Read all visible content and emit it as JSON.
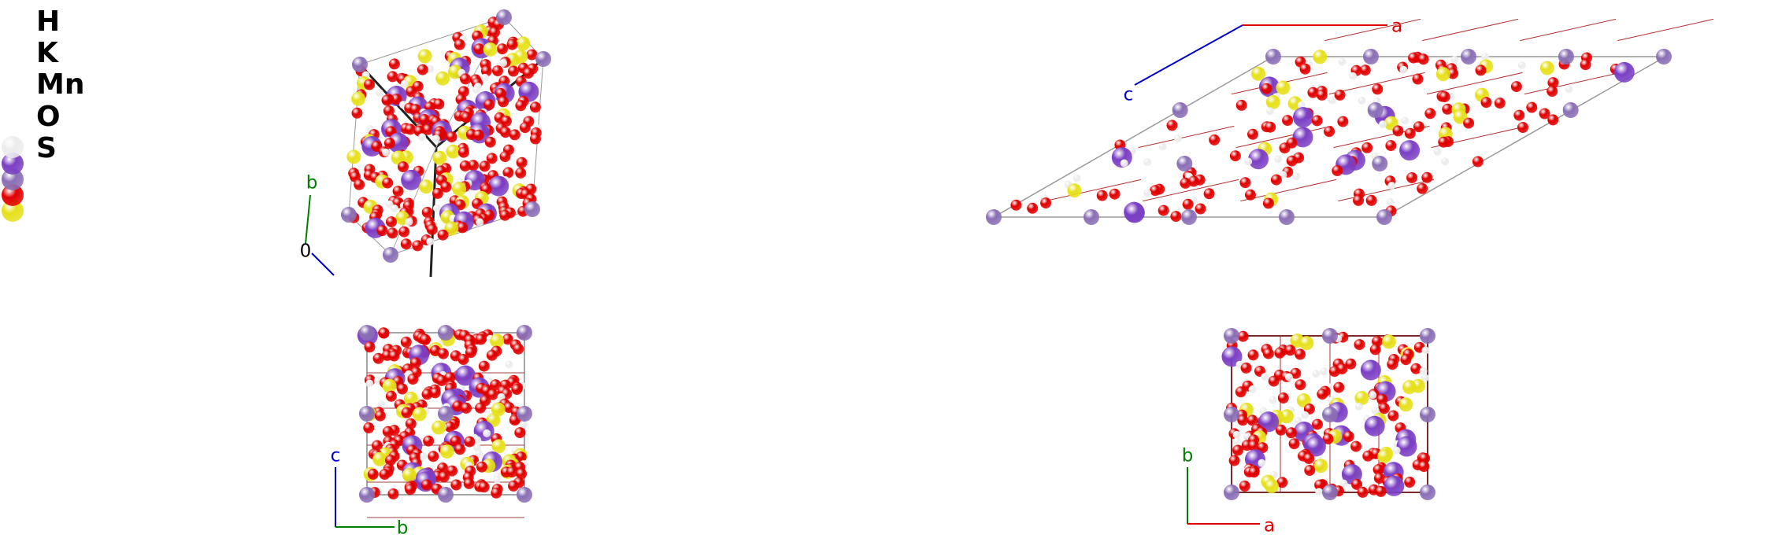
{
  "legend": [
    {
      "label": "H",
      "color": "#ececec"
    },
    {
      "label": "K",
      "color": "#7b3fc4"
    },
    {
      "label": "Mn",
      "color": "#8a6fb5"
    },
    {
      "label": "O",
      "color": "#e00000"
    },
    {
      "label": "S",
      "color": "#e6e01a"
    }
  ],
  "views": [
    {
      "axes": [
        {
          "label": "b",
          "color": "#008000"
        },
        {
          "label": "0",
          "color": "#000000"
        }
      ]
    },
    {
      "axes": [
        {
          "label": "a",
          "color": "#e00000"
        },
        {
          "label": "c",
          "color": "#0000cc"
        }
      ]
    },
    {
      "axes": [
        {
          "label": "c",
          "color": "#0000cc"
        },
        {
          "label": "b",
          "color": "#008000"
        }
      ]
    },
    {
      "axes": [
        {
          "label": "b",
          "color": "#008000"
        },
        {
          "label": "a",
          "color": "#e00000"
        }
      ]
    }
  ]
}
